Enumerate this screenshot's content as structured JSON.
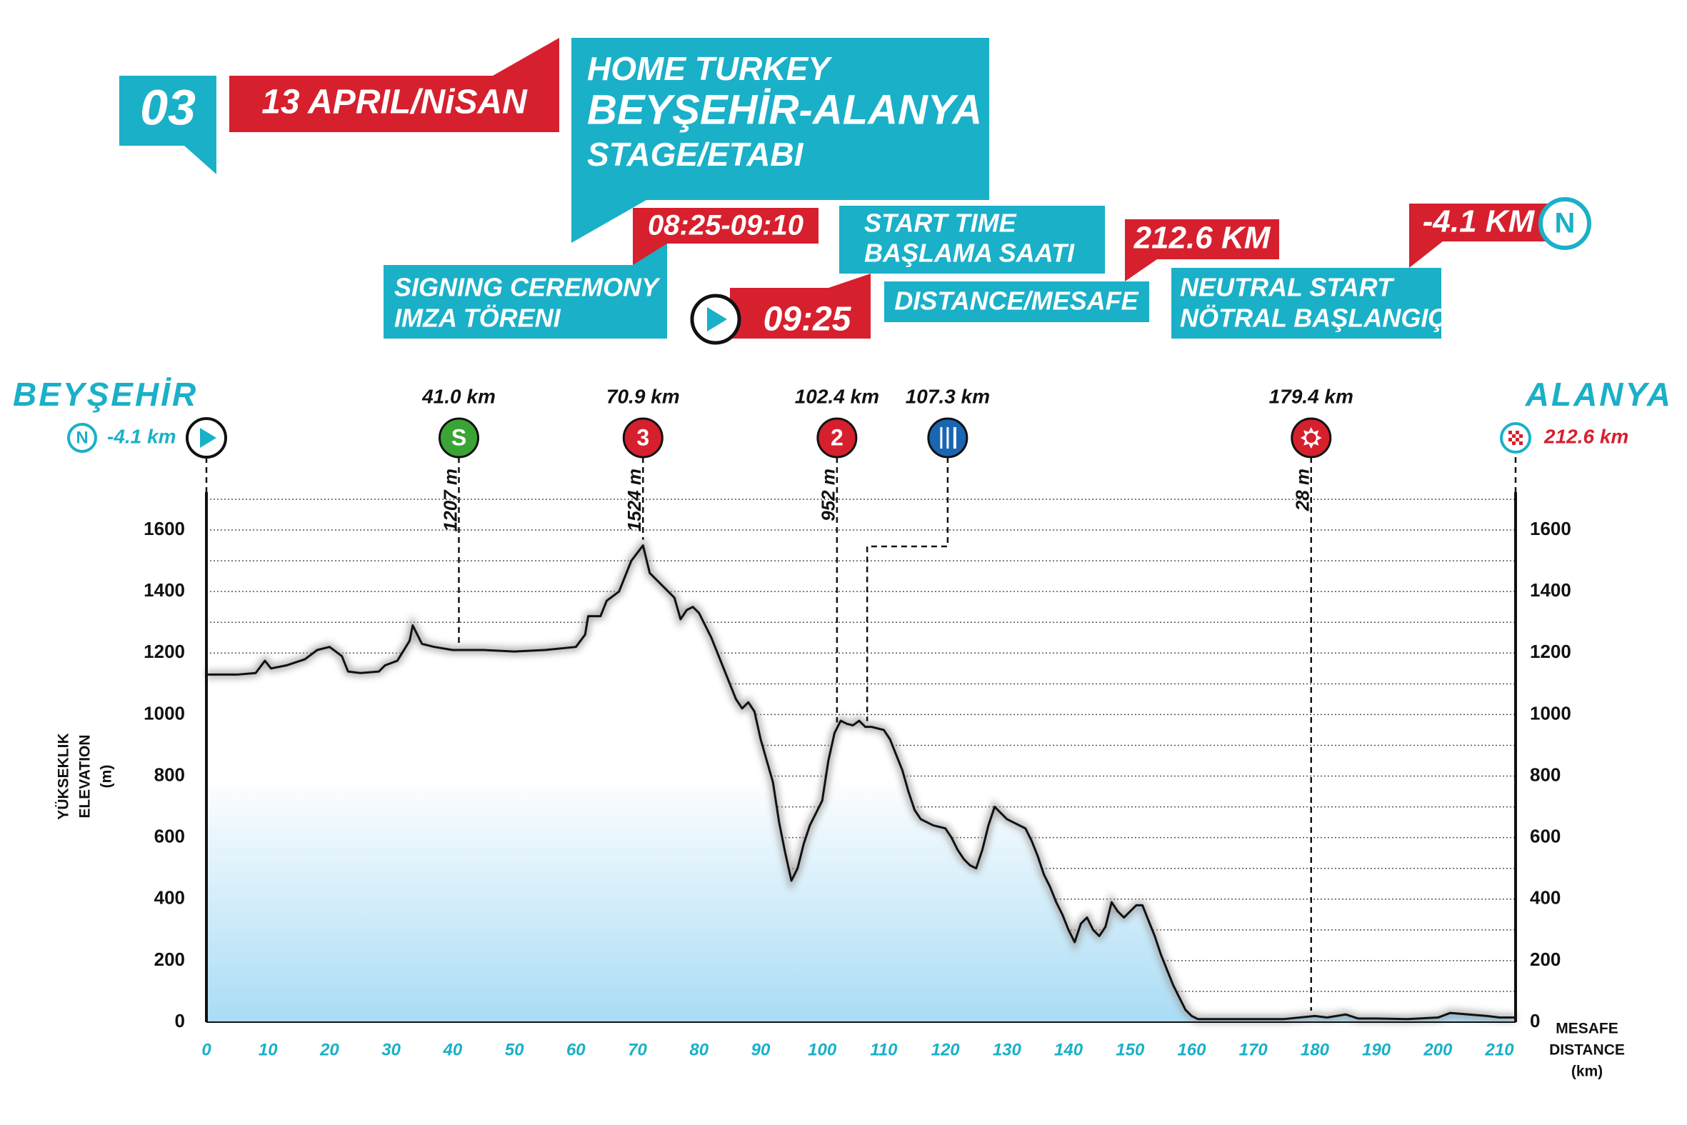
{
  "header": {
    "stage_number": "03",
    "date": "13 APRIL/NiSAN",
    "title_line1": "HOME TURKEY",
    "title_line2": "BEYŞEHİR-ALANYA",
    "title_line3": "STAGE/ETABI",
    "signing_time": "08:25-09:10",
    "signing_label1": "SIGNING CEREMONY",
    "signing_label2": "IMZA TÖRENI",
    "start_label1": "START TIME",
    "start_label2": "BAŞLAMA SAATI",
    "start_time": "09:25",
    "distance": "212.6 KM",
    "distance_label": "DISTANCE/MESAFE",
    "neutral": "-4.1 KM",
    "neutral_icon": "N",
    "neutral_label1": "NEUTRAL START",
    "neutral_label2": "NÖTRAL BAŞLANGIÇ"
  },
  "chart_data": {
    "type": "area",
    "y_label": [
      "YÜKSEKLIK",
      "ELEVATION",
      "(m)"
    ],
    "x_label": [
      "MESAFE",
      "DISTANCE",
      "(km)"
    ],
    "start": {
      "name": "BEYŞEHİR",
      "km_label": "-4.1 km",
      "icon": "N"
    },
    "finish": {
      "name": "ALANYA",
      "km_label": "212.6 km"
    },
    "markers": [
      {
        "km": 41.0,
        "km_label": "41.0 km",
        "icon": "S",
        "color": "#3aa535",
        "elevation": 1207,
        "elevation_label": "1207 m"
      },
      {
        "km": 70.9,
        "km_label": "70.9 km",
        "icon": "3",
        "color": "#d6202e",
        "elevation": 1524,
        "elevation_label": "1524 m"
      },
      {
        "km": 102.4,
        "km_label": "102.4 km",
        "icon": "2",
        "color": "#d6202e",
        "elevation": 952,
        "elevation_label": "952 m"
      },
      {
        "km": 107.3,
        "km_label": "107.3 km",
        "color": "#1a66b3"
      },
      {
        "km": 179.4,
        "km_label": "179.4 km",
        "color": "#d6202e",
        "elevation": 28,
        "elevation_label": "28 m"
      }
    ],
    "x": [
      0,
      5,
      8,
      9.5,
      10.5,
      13,
      16,
      18,
      20,
      22,
      23,
      25,
      28,
      29,
      31,
      33,
      33.5,
      35,
      37,
      40,
      45,
      50,
      55,
      60,
      61.5,
      62,
      64,
      65,
      67,
      68,
      69,
      70.9,
      72,
      74,
      76,
      77,
      78,
      79,
      80,
      82,
      84,
      86,
      87,
      88,
      89,
      90,
      91,
      92,
      93,
      94,
      95,
      96,
      97,
      98,
      100,
      101,
      102,
      103,
      104,
      105,
      106,
      107,
      108,
      110,
      111,
      112,
      113,
      114,
      115,
      116,
      118,
      120,
      121,
      122,
      123,
      124,
      125,
      126,
      127,
      128,
      129,
      130,
      132,
      133,
      134,
      135,
      136,
      137,
      138,
      139,
      140,
      141,
      142,
      143,
      144,
      145,
      146,
      147,
      148,
      149,
      150,
      151,
      152,
      153,
      154,
      155,
      156,
      157,
      158,
      159,
      160,
      161,
      165,
      170,
      175,
      180,
      182,
      185,
      187,
      190,
      195,
      200,
      202,
      205,
      208,
      210,
      212.6
    ],
    "values": [
      1130,
      1130,
      1135,
      1175,
      1150,
      1160,
      1180,
      1210,
      1220,
      1190,
      1140,
      1135,
      1140,
      1160,
      1175,
      1240,
      1290,
      1230,
      1220,
      1210,
      1210,
      1205,
      1210,
      1220,
      1260,
      1320,
      1320,
      1370,
      1400,
      1450,
      1500,
      1550,
      1460,
      1420,
      1380,
      1310,
      1340,
      1350,
      1330,
      1250,
      1150,
      1050,
      1020,
      1040,
      1010,
      920,
      850,
      780,
      650,
      550,
      460,
      500,
      580,
      640,
      720,
      850,
      940,
      980,
      970,
      965,
      980,
      960,
      960,
      950,
      920,
      870,
      820,
      750,
      690,
      660,
      640,
      630,
      600,
      560,
      530,
      510,
      500,
      560,
      640,
      700,
      680,
      660,
      640,
      630,
      590,
      540,
      480,
      440,
      390,
      350,
      300,
      260,
      320,
      340,
      300,
      280,
      310,
      390,
      360,
      340,
      360,
      380,
      380,
      330,
      280,
      220,
      170,
      120,
      80,
      40,
      20,
      10,
      10,
      10,
      10,
      20,
      15,
      25,
      12,
      12,
      10,
      15,
      30,
      25,
      20,
      15,
      15
    ],
    "color": "#111111",
    "fill_color": "#a9dcf5",
    "accent": "#1ab0c8",
    "xlim": [
      0,
      212.6
    ],
    "xticks": [
      0,
      10,
      20,
      30,
      40,
      50,
      60,
      70,
      80,
      90,
      100,
      110,
      120,
      130,
      140,
      150,
      160,
      170,
      180,
      190,
      200,
      210
    ],
    "ylim": [
      0,
      1700
    ],
    "yticks": [
      0,
      200,
      400,
      600,
      800,
      1000,
      1200,
      1400,
      1600
    ],
    "grid_lines": [
      100,
      200,
      300,
      400,
      500,
      600,
      700,
      800,
      900,
      1000,
      1100,
      1200,
      1300,
      1400,
      1500,
      1600,
      1700
    ],
    "grid": true
  }
}
